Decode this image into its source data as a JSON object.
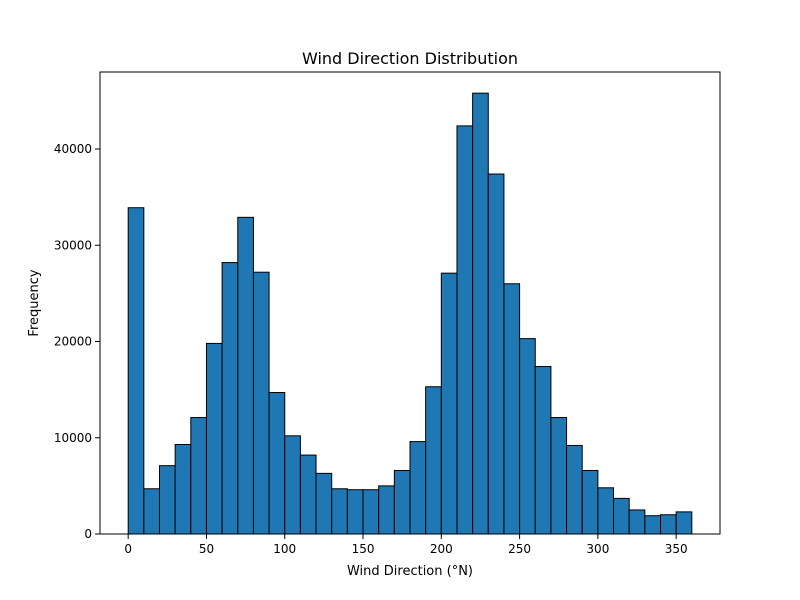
{
  "chart_data": {
    "type": "bar",
    "title": "Wind Direction Distribution",
    "xlabel": "Wind Direction (°N)",
    "ylabel": "Frequency",
    "bar_color": "#1f77b4",
    "edge_color": "#000000",
    "bin_width": 10,
    "xlim": [
      -18,
      378
    ],
    "ylim": [
      0,
      48000
    ],
    "xticks": [
      0,
      50,
      100,
      150,
      200,
      250,
      300,
      350
    ],
    "yticks": [
      0,
      10000,
      20000,
      30000,
      40000
    ],
    "grid": false,
    "bins": [
      {
        "start": 0,
        "value": 33900
      },
      {
        "start": 10,
        "value": 4700
      },
      {
        "start": 20,
        "value": 7100
      },
      {
        "start": 30,
        "value": 9300
      },
      {
        "start": 40,
        "value": 12100
      },
      {
        "start": 50,
        "value": 19800
      },
      {
        "start": 60,
        "value": 28200
      },
      {
        "start": 70,
        "value": 32900
      },
      {
        "start": 80,
        "value": 27200
      },
      {
        "start": 90,
        "value": 14700
      },
      {
        "start": 100,
        "value": 10200
      },
      {
        "start": 110,
        "value": 8200
      },
      {
        "start": 120,
        "value": 6300
      },
      {
        "start": 130,
        "value": 4700
      },
      {
        "start": 140,
        "value": 4600
      },
      {
        "start": 150,
        "value": 4600
      },
      {
        "start": 160,
        "value": 5000
      },
      {
        "start": 170,
        "value": 6600
      },
      {
        "start": 180,
        "value": 9600
      },
      {
        "start": 190,
        "value": 15300
      },
      {
        "start": 200,
        "value": 27100
      },
      {
        "start": 210,
        "value": 42400
      },
      {
        "start": 220,
        "value": 45800
      },
      {
        "start": 230,
        "value": 37400
      },
      {
        "start": 240,
        "value": 26000
      },
      {
        "start": 250,
        "value": 20300
      },
      {
        "start": 260,
        "value": 17400
      },
      {
        "start": 270,
        "value": 12100
      },
      {
        "start": 280,
        "value": 9200
      },
      {
        "start": 290,
        "value": 6600
      },
      {
        "start": 300,
        "value": 4800
      },
      {
        "start": 310,
        "value": 3700
      },
      {
        "start": 320,
        "value": 2500
      },
      {
        "start": 330,
        "value": 1900
      },
      {
        "start": 340,
        "value": 2000
      },
      {
        "start": 350,
        "value": 2300
      }
    ]
  }
}
